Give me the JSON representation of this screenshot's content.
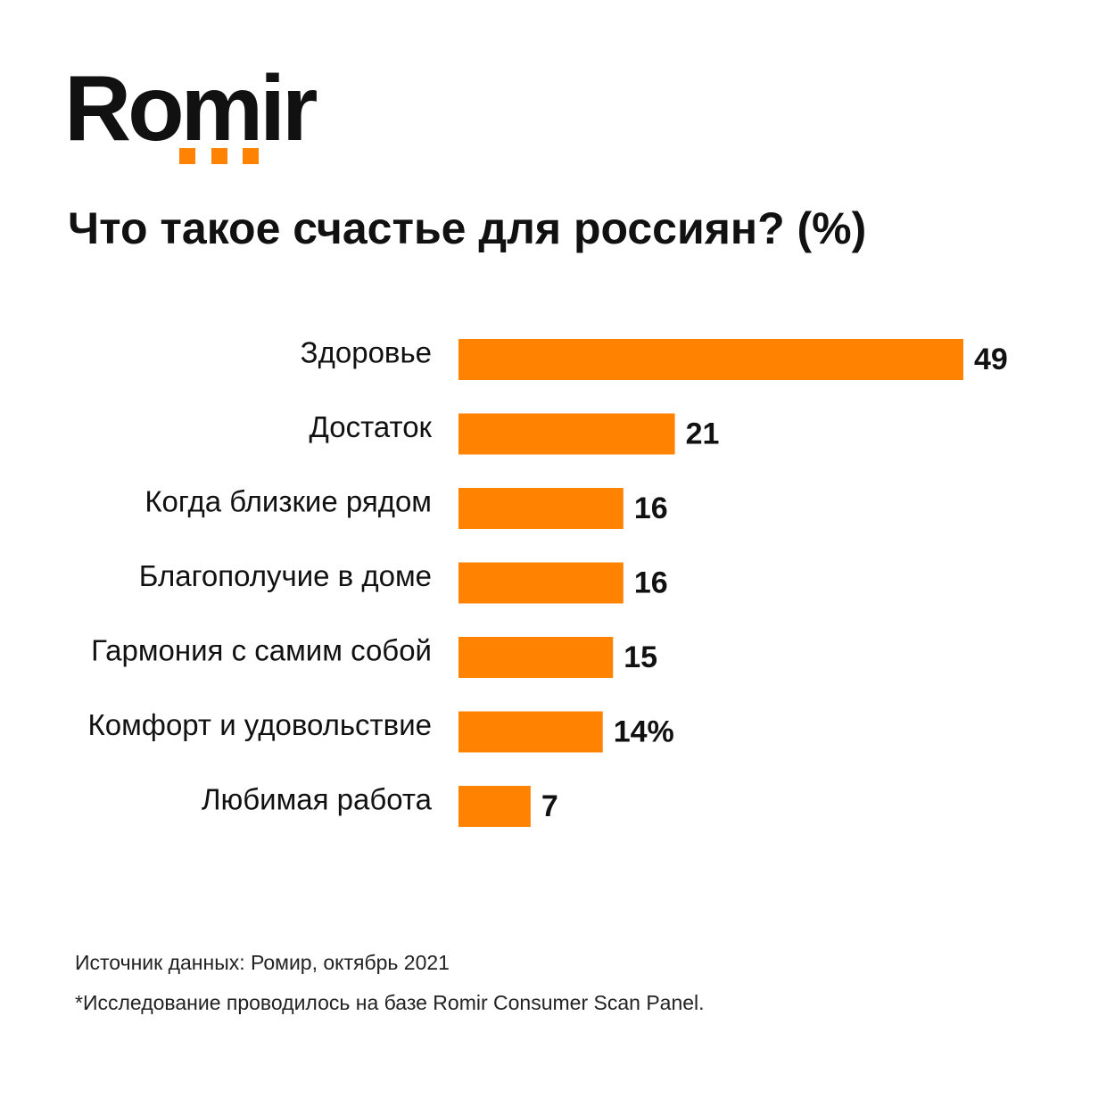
{
  "logo": "Romir",
  "chart_data": {
    "type": "bar",
    "orientation": "horizontal",
    "title": "Что такое счастье для россиян? (%)",
    "categories": [
      "Здоровье",
      "Достаток",
      "Когда близкие рядом",
      "Благополучие в доме",
      "Гармония с самим собой",
      "Комфорт и удовольствие",
      "Любимая работа"
    ],
    "values": [
      49,
      21,
      16,
      16,
      15,
      14,
      7
    ],
    "value_labels": [
      "49",
      "21",
      "16",
      "16",
      "15",
      "14%",
      "7"
    ],
    "color": "#ff8200",
    "source": "Источник данных: Ромир, октябрь 2021",
    "footnote": "*Исследование проводилось на базе Romir Consumer Scan Panel."
  }
}
